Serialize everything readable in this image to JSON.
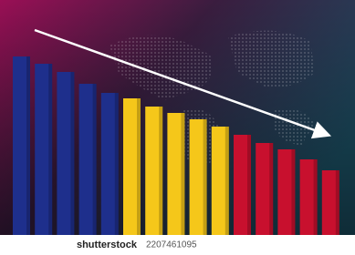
{
  "chart_data": {
    "type": "bar",
    "categories": [
      null,
      null,
      null,
      null,
      null,
      null,
      null,
      null,
      null,
      null,
      null,
      null,
      null,
      null,
      null
    ],
    "values": [
      196,
      188,
      179,
      166,
      156,
      150,
      141,
      134,
      127,
      119,
      110,
      101,
      94,
      83,
      71
    ],
    "colors": [
      "#1e2f8c",
      "#1e2f8c",
      "#1e2f8c",
      "#1e2f8c",
      "#1e2f8c",
      "#f5c71a",
      "#f5c71a",
      "#f5c71a",
      "#f5c71a",
      "#f5c71a",
      "#c8102e",
      "#c8102e",
      "#c8102e",
      "#c8102e",
      "#c8102e"
    ]
  },
  "watermark": {
    "brand": "shutterstock",
    "id": "2207461095"
  }
}
